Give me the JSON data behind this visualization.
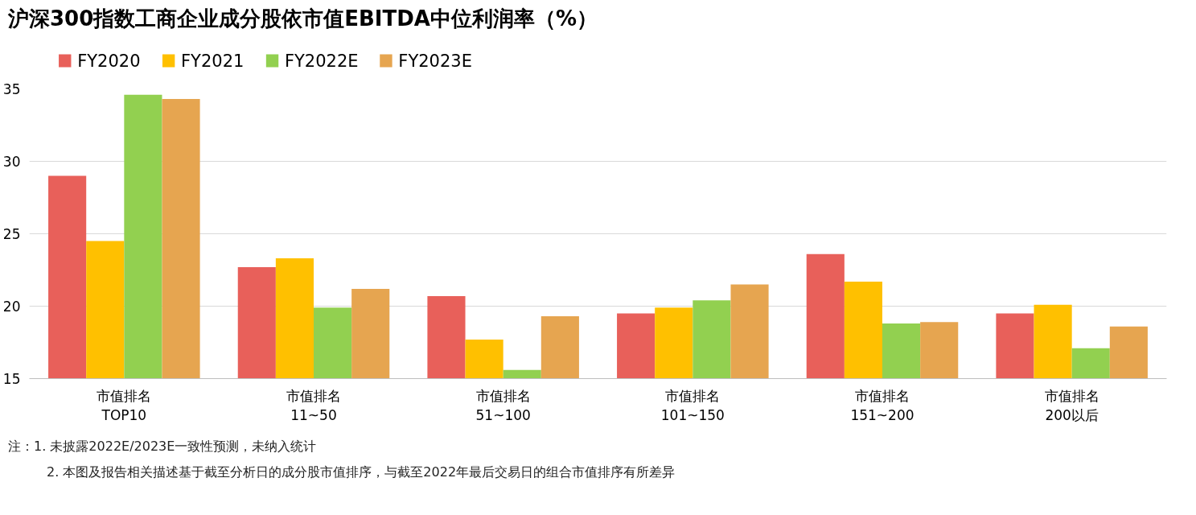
{
  "chart_data": {
    "type": "bar",
    "title": "沪深300指数工商企业成分股依市值EBITDA中位利润率（%）",
    "categories": [
      "市值排名\nTOP10",
      "市值排名\n11~50",
      "市值排名\n51~100",
      "市值排名\n101~150",
      "市值排名\n151~200",
      "市值排名\n200以后"
    ],
    "series": [
      {
        "name": "FY2020",
        "color": "#e8605a",
        "values": [
          29.0,
          22.7,
          20.7,
          19.5,
          23.6,
          19.5
        ]
      },
      {
        "name": "FY2021",
        "color": "#ffc000",
        "values": [
          24.5,
          23.3,
          17.7,
          19.9,
          21.7,
          20.1
        ]
      },
      {
        "name": "FY2022E",
        "color": "#92d050",
        "values": [
          34.6,
          19.9,
          15.6,
          20.4,
          18.8,
          17.1
        ]
      },
      {
        "name": "FY2023E",
        "color": "#e6a550",
        "values": [
          34.3,
          21.2,
          19.3,
          21.5,
          18.9,
          18.6
        ]
      }
    ],
    "ylim": [
      15,
      35
    ],
    "yticks": [
      15,
      20,
      25,
      30,
      35
    ],
    "grid": "y",
    "legend": "top left",
    "annotations": [
      "注：1. 未披露2022E/2023E一致性预测，未纳入统计",
      "2. 本图及报告相关描述基于截至分析日的成分股市值排序，与截至2022年最后交易日的组合市值排序有所差异"
    ]
  }
}
